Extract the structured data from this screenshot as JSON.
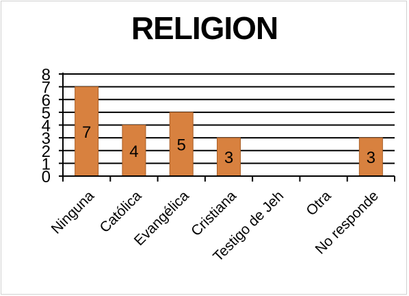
{
  "chart_data": {
    "type": "bar",
    "title": "RELIGION",
    "categories": [
      "Ninguna",
      "Católica",
      "Evangélica",
      "Cristiana",
      "Testigo de Jeh",
      "Otra",
      "No responde"
    ],
    "values": [
      7,
      4,
      5,
      3,
      null,
      null,
      3
    ],
    "data_labels": [
      "7",
      "4",
      "5",
      "3",
      "",
      "",
      "3"
    ],
    "ylim": [
      0,
      8
    ],
    "yticks": [
      "0",
      "1",
      "2",
      "3",
      "4",
      "5",
      "6",
      "7",
      "8"
    ],
    "grid": true,
    "legend": "none",
    "colors": {
      "bar": "#d8813f",
      "bar_edge": "#a85e26",
      "grid": "#000000",
      "axis": "#000000"
    }
  }
}
